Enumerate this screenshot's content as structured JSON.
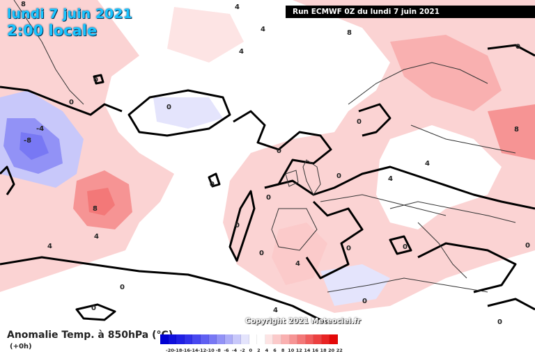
{
  "title": {
    "date": "lundi 7 juin 2021",
    "time": "2:00 locale"
  },
  "run_info": "Run ECMWF 0Z du lundi 7 juin 2021",
  "copyright": "Copyright 2021 Meteociel.fr",
  "legend": {
    "title": "Anomalie Temp. à 850hPa (°C)",
    "subtitle": "(+0h)",
    "ticks": [
      "-20",
      "-18",
      "-16",
      "-14",
      "-12",
      "-10",
      "-8",
      "-6",
      "-4",
      "-2",
      "0",
      "2",
      "4",
      "6",
      "8",
      "10",
      "12",
      "14",
      "16",
      "18",
      "20",
      "22"
    ],
    "colors": [
      "#0000d2",
      "#1010dc",
      "#2020e4",
      "#3232ea",
      "#4848f0",
      "#6060f2",
      "#7878f4",
      "#9292f6",
      "#adadf8",
      "#c8c8fa",
      "#e4e4fc",
      "#ffffff",
      "#ffffff",
      "#fde4e4",
      "#fbcaca",
      "#f9b0b0",
      "#f69494",
      "#f37878",
      "#f05c5c",
      "#ec4040",
      "#e82424",
      "#e40808"
    ]
  },
  "contour_labels": [
    "8",
    "4",
    "4",
    "4",
    "8",
    "0",
    "0",
    "0",
    "0",
    "0",
    "-4",
    "-8",
    "0",
    "0",
    "8",
    "4",
    "4",
    "0",
    "0",
    "0",
    "0",
    "0",
    "0",
    "0",
    "4",
    "0",
    "4",
    "4",
    "0",
    "8",
    "4",
    "0",
    "0"
  ]
}
